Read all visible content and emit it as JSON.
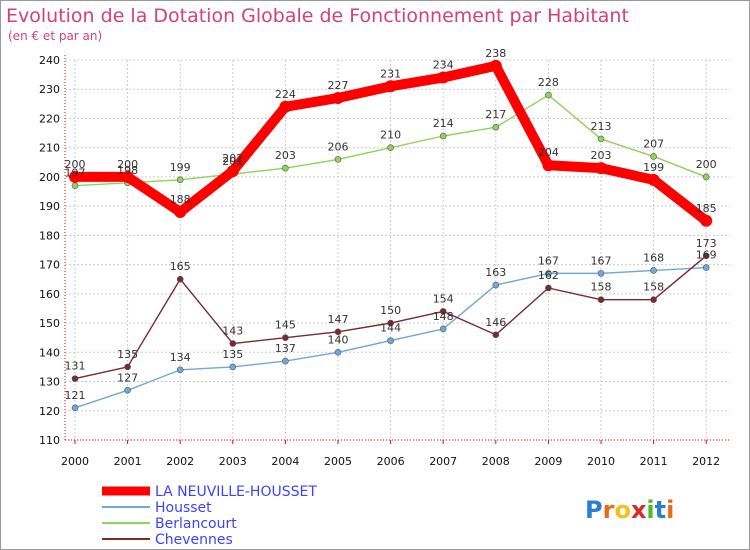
{
  "chart_data": {
    "type": "line",
    "title": "Evolution de la Dotation Globale de Fonctionnement par Habitant",
    "subtitle": "(en € et par an)",
    "xlabel": "",
    "ylabel": "",
    "x": [
      "2000",
      "2001",
      "2002",
      "2003",
      "2004",
      "2005",
      "2006",
      "2007",
      "2008",
      "2009",
      "2010",
      "2011",
      "2012"
    ],
    "ylim": [
      110,
      240
    ],
    "yticks": [
      110,
      120,
      130,
      140,
      150,
      160,
      170,
      180,
      190,
      200,
      210,
      220,
      230,
      240
    ],
    "grid": true,
    "legend_position": "bottom-left",
    "series": [
      {
        "name": "LA NEUVILLE-HOUSSET",
        "color": "#ff0000",
        "values": [
          200,
          200,
          188,
          202,
          224,
          227,
          231,
          234,
          238,
          204,
          203,
          199,
          185
        ]
      },
      {
        "name": "Housset",
        "color": "#6fa8dc",
        "values": [
          121,
          127,
          134,
          135,
          137,
          140,
          144,
          148,
          163,
          167,
          167,
          168,
          169
        ]
      },
      {
        "name": "Berlancourt",
        "color": "#8fd35a",
        "values": [
          197,
          198,
          199,
          201,
          203,
          206,
          210,
          214,
          217,
          228,
          213,
          207,
          200
        ]
      },
      {
        "name": "Chevennes",
        "color": "#7a2a2a",
        "values": [
          131,
          135,
          165,
          143,
          145,
          147,
          150,
          154,
          146,
          162,
          158,
          158,
          173
        ]
      }
    ]
  },
  "colors": {
    "title": "#d4417a",
    "axis_text": "#111111",
    "grid": "#cccccc",
    "legend_text": "#4040ff"
  },
  "logo": {
    "text": "Proxiti"
  }
}
